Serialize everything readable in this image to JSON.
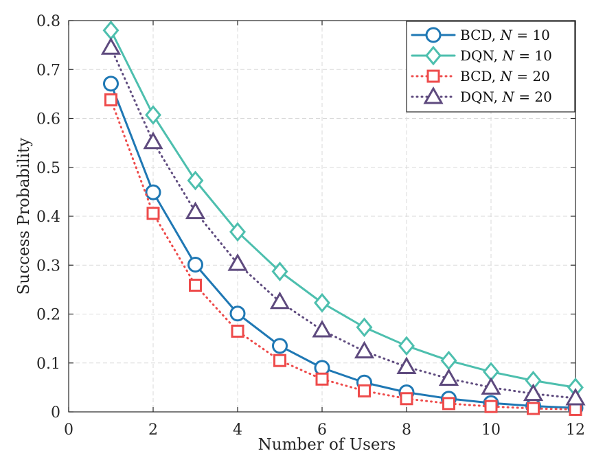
{
  "chart_data": {
    "type": "line",
    "xlabel": "Number of Users",
    "ylabel": "Success Probability",
    "xlim": [
      0,
      12
    ],
    "ylim": [
      0,
      0.8
    ],
    "xticks": [
      0,
      2,
      4,
      6,
      8,
      10,
      12
    ],
    "yticks": [
      0,
      0.1,
      0.2,
      0.3,
      0.4,
      0.5,
      0.6,
      0.7,
      0.8
    ],
    "grid": true,
    "legend_position": "top-right",
    "x": [
      1,
      2,
      3,
      4,
      5,
      6,
      7,
      8,
      9,
      10,
      11,
      12
    ],
    "series": [
      {
        "name": "BCD, N = 10",
        "legend_prefix": "BCD, ",
        "legend_var": "N",
        "legend_suffix": " = 10",
        "color": "#1f78b4",
        "line": "solid",
        "marker": "circle",
        "values": [
          0.671,
          0.449,
          0.301,
          0.201,
          0.135,
          0.09,
          0.06,
          0.04,
          0.027,
          0.018,
          0.012,
          0.008
        ]
      },
      {
        "name": "DQN, N = 10",
        "legend_prefix": "DQN, ",
        "legend_var": "N",
        "legend_suffix": " = 10",
        "color": "#4dbfae",
        "line": "solid",
        "marker": "diamond",
        "values": [
          0.78,
          0.607,
          0.473,
          0.368,
          0.287,
          0.223,
          0.173,
          0.135,
          0.105,
          0.082,
          0.064,
          0.05
        ]
      },
      {
        "name": "BCD, N = 20",
        "legend_prefix": "BCD, ",
        "legend_var": "N",
        "legend_suffix": " = 20",
        "color": "#ee4b4b",
        "line": "dotted",
        "marker": "square",
        "values": [
          0.638,
          0.406,
          0.259,
          0.165,
          0.105,
          0.067,
          0.043,
          0.027,
          0.017,
          0.011,
          0.007,
          0.005
        ]
      },
      {
        "name": "DQN, N = 20",
        "legend_prefix": "DQN, ",
        "legend_var": "N",
        "legend_suffix": " = 20",
        "color": "#5e4a7e",
        "line": "dotted",
        "marker": "triangle",
        "values": [
          0.745,
          0.552,
          0.409,
          0.303,
          0.225,
          0.167,
          0.124,
          0.092,
          0.068,
          0.05,
          0.037,
          0.028
        ]
      }
    ]
  }
}
